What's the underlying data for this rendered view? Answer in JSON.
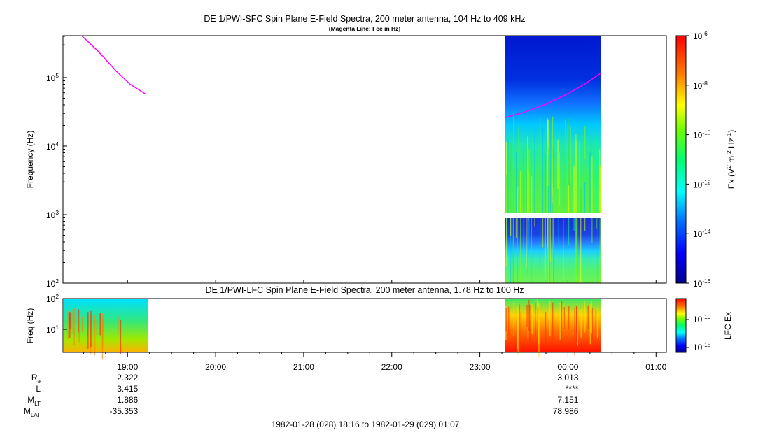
{
  "chart_data": [
    {
      "type": "heatmap",
      "title": "DE 1/PWI-SFC  Spin Plane E-Field Spectra, 200 meter antenna, 104 Hz to 409 kHz",
      "subtitle": "(Magenta Line: Fce in Hz)",
      "ylabel": "Frequency (Hz)",
      "yscale": "log",
      "ylim": [
        100,
        409000
      ],
      "yticks": [
        {
          "value": 100,
          "base": "10",
          "exp": "2"
        },
        {
          "value": 1000,
          "base": "10",
          "exp": "3"
        },
        {
          "value": 10000,
          "base": "10",
          "exp": "4"
        },
        {
          "value": 100000,
          "base": "10",
          "exp": "5"
        }
      ],
      "data_interval_hours": [
        23.28,
        24.37
      ],
      "colorbar": {
        "label_parts": [
          "Ex (V",
          "2",
          " m",
          "-2",
          " Hz",
          "-1",
          ")"
        ],
        "scale": "log",
        "range": [
          1e-16,
          1e-06
        ],
        "ticks": [
          {
            "value": 1e-06,
            "base": "10",
            "exp": "-6"
          },
          {
            "value": 1e-08,
            "base": "10",
            "exp": "-8"
          },
          {
            "value": 1e-10,
            "base": "10",
            "exp": "-10"
          },
          {
            "value": 1e-12,
            "base": "10",
            "exp": "-12"
          },
          {
            "value": 1e-14,
            "base": "10",
            "exp": "-14"
          },
          {
            "value": 1e-16,
            "base": "10",
            "exp": "-16"
          }
        ]
      },
      "series": [
        {
          "name": "Fce",
          "color": "#ff00ff",
          "segments": [
            [
              [
                18.48,
                409000
              ],
              [
                18.67,
                240000
              ],
              [
                18.87,
                125000
              ],
              [
                19.03,
                80000
              ],
              [
                19.2,
                58000
              ]
            ],
            [
              [
                23.28,
                26000
              ],
              [
                23.5,
                31000
              ],
              [
                23.75,
                41000
              ],
              [
                24.0,
                58000
              ],
              [
                24.2,
                82000
              ],
              [
                24.37,
                115000
              ]
            ]
          ]
        }
      ]
    },
    {
      "type": "heatmap",
      "title": "DE 1/PWI-LFC  Spin Plane E-Field Spectra, 200 meter antenna, 1.78 Hz to 100 Hz",
      "ylabel": "Freq (Hz)",
      "yscale": "log",
      "ylim": [
        1.78,
        100
      ],
      "yticks": [
        {
          "value": 10,
          "base": "10",
          "exp": "1"
        },
        {
          "value": 100,
          "base": "10",
          "exp": "2"
        }
      ],
      "data_intervals_hours": [
        [
          18.27,
          19.22
        ],
        [
          23.28,
          24.37
        ]
      ],
      "colorbar": {
        "label": "LFC Ex",
        "scale": "log",
        "ticks": [
          {
            "value": 1e-10,
            "base": "10",
            "exp": "-10"
          },
          {
            "value": 1e-15,
            "base": "10",
            "exp": "-15"
          }
        ]
      }
    }
  ],
  "x_axis": {
    "start_hours": 18.267,
    "end_hours": 25.117,
    "ticks": [
      {
        "value": 19,
        "label": "19:00"
      },
      {
        "value": 20,
        "label": "20:00"
      },
      {
        "value": 21,
        "label": "21:00"
      },
      {
        "value": 22,
        "label": "22:00"
      },
      {
        "value": 23,
        "label": "23:00"
      },
      {
        "value": 24,
        "label": "00:00"
      },
      {
        "value": 25,
        "label": "01:00"
      }
    ]
  },
  "ephemeris": {
    "rows": [
      {
        "label": "R",
        "sub": "e",
        "v19": "2.322",
        "v00": "3.013"
      },
      {
        "label": "L",
        "sub": "",
        "v19": "3.415",
        "v00": "****"
      },
      {
        "label": "M",
        "sub": "LT",
        "v19": "1.886",
        "v00": "7.151"
      },
      {
        "label": "M",
        "sub": "LAT",
        "v19": "-35.353",
        "v00": "78.986"
      }
    ]
  },
  "time_range": "1982-01-28 (028) 18:16 to 1982-01-29 (029) 01:07"
}
